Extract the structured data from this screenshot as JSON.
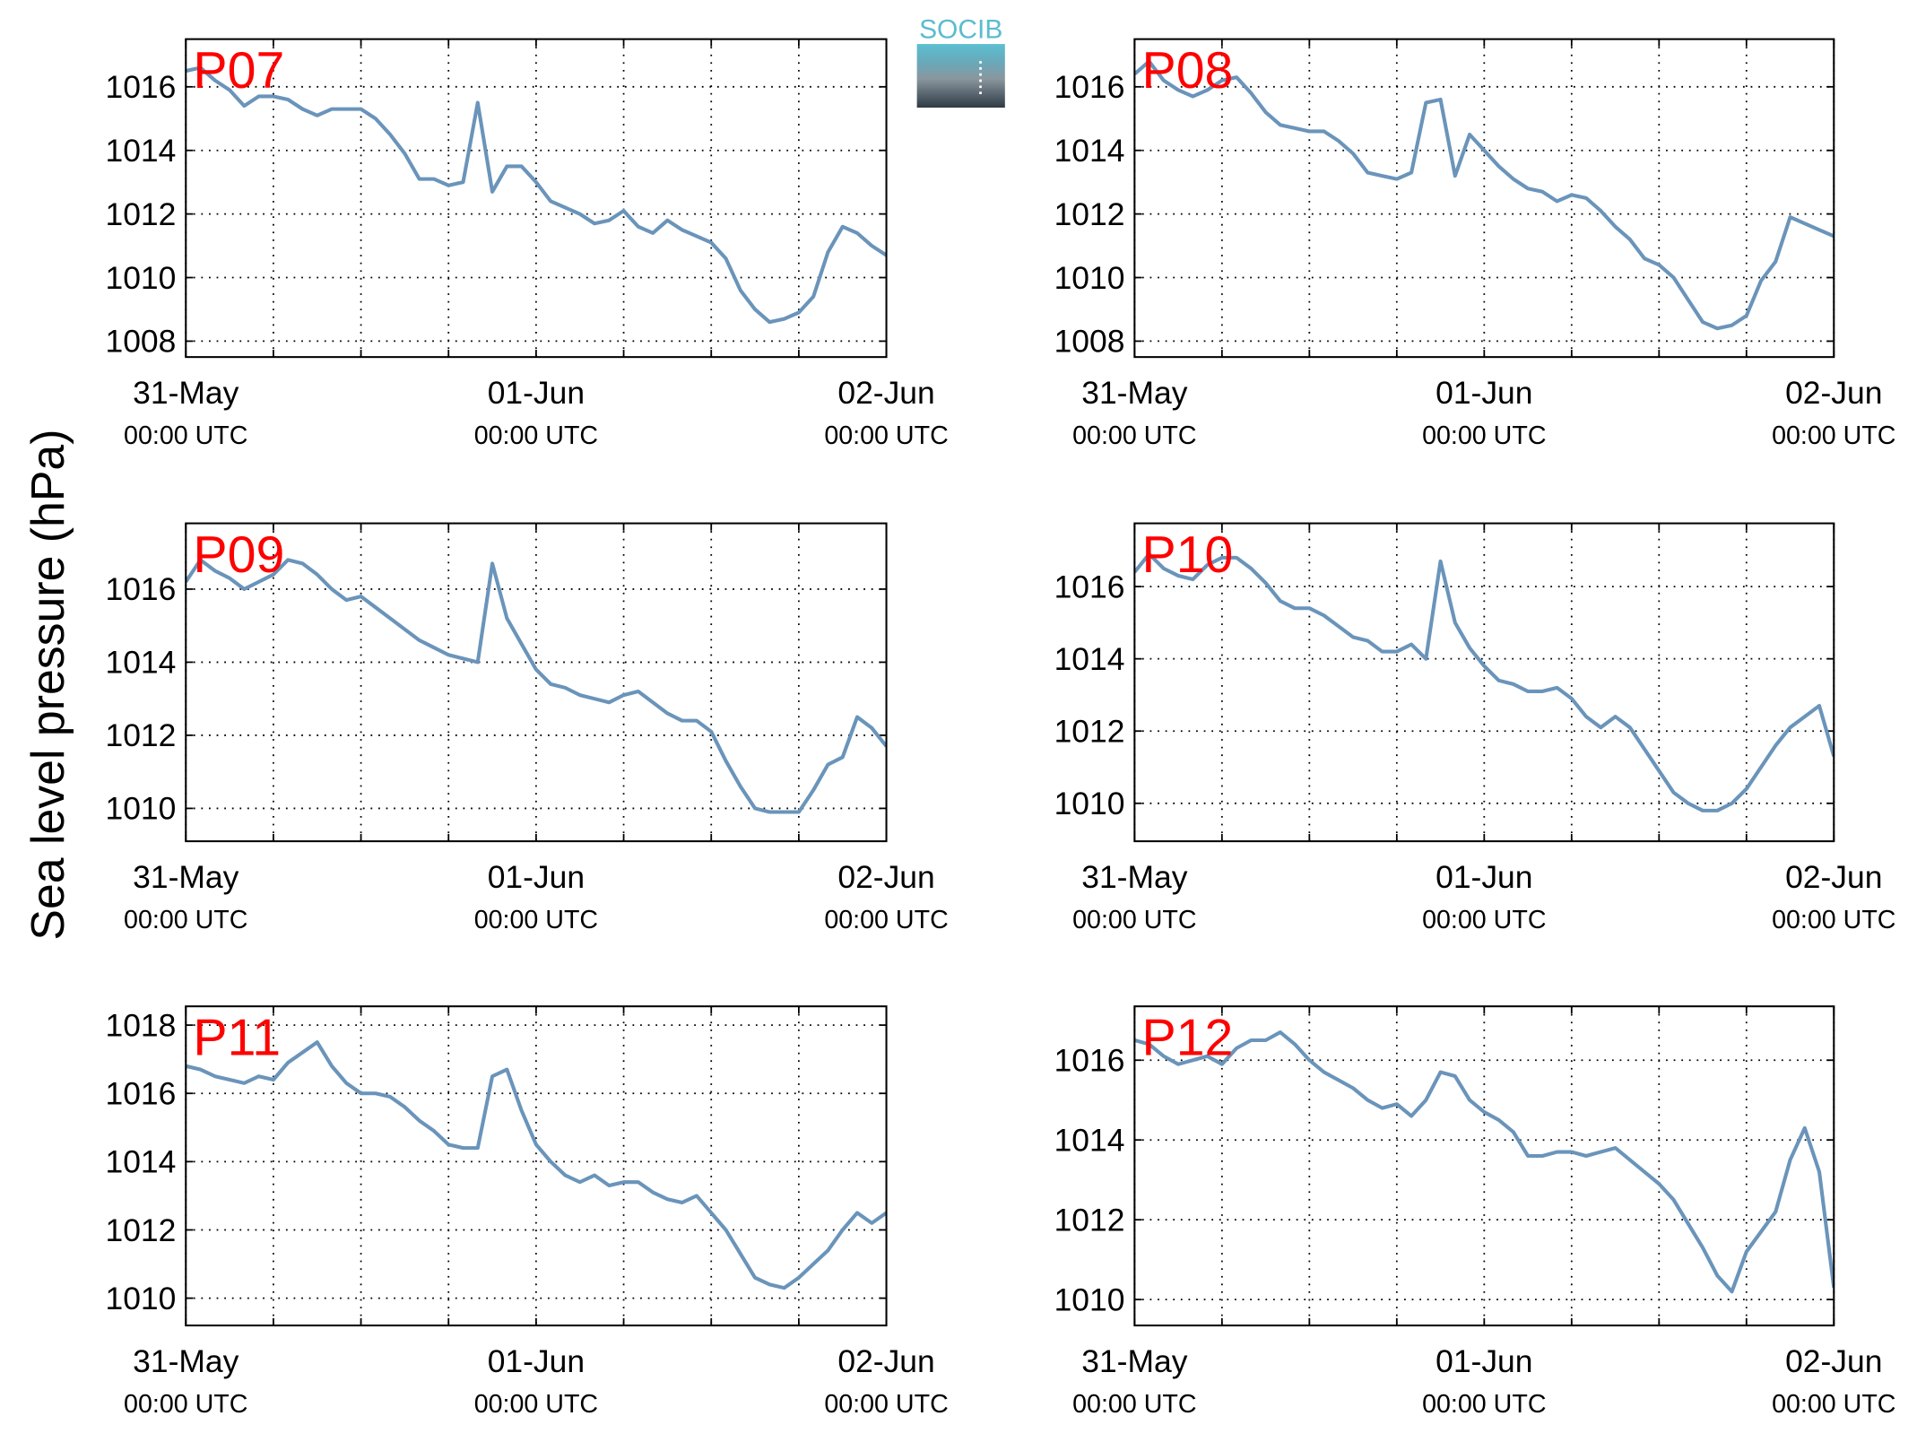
{
  "ylabel": "Sea level pressure (hPa)",
  "logo": "SOCIB",
  "chart_data": [
    {
      "type": "line",
      "title": "P07",
      "color": "#6a94ba",
      "x": [
        0,
        1,
        2,
        3,
        4,
        5,
        6,
        7,
        8,
        9,
        10,
        11,
        12,
        13,
        14,
        15,
        16,
        17,
        18,
        19,
        20,
        21,
        22,
        23,
        24,
        25,
        26,
        27,
        28,
        29,
        30,
        31,
        32,
        33,
        34,
        35,
        36,
        37,
        38,
        39,
        40,
        41,
        42,
        43,
        44,
        45,
        46,
        47,
        48
      ],
      "values": [
        1016.5,
        1016.6,
        1016.2,
        1015.9,
        1015.4,
        1015.7,
        1015.7,
        1015.6,
        1015.3,
        1015.1,
        1015.3,
        1015.3,
        1015.3,
        1015.0,
        1014.5,
        1013.9,
        1013.1,
        1013.1,
        1012.9,
        1013.0,
        1015.5,
        1012.7,
        1013.5,
        1013.5,
        1013.0,
        1012.4,
        1012.2,
        1012.0,
        1011.7,
        1011.8,
        1012.1,
        1011.6,
        1011.4,
        1011.8,
        1011.5,
        1011.3,
        1011.1,
        1010.6,
        1009.6,
        1009.0,
        1008.6,
        1008.7,
        1008.9,
        1009.4,
        1010.8,
        1011.6,
        1011.4,
        1011.0,
        1010.7
      ],
      "xlim": [
        0,
        48
      ],
      "ylim": [
        1007.5,
        1017.5
      ],
      "yticks": [
        1008,
        1010,
        1012,
        1014,
        1016
      ],
      "xticks": [
        {
          "value": 0,
          "label": "31-May\n00:00 UTC"
        },
        {
          "value": 24,
          "label": "01-Jun\n00:00 UTC"
        },
        {
          "value": 48,
          "label": "02-Jun\n00:00 UTC"
        }
      ],
      "xminor": [
        6,
        12,
        18,
        30,
        36,
        42
      ],
      "grid": true
    },
    {
      "type": "line",
      "title": "P08",
      "color": "#6a94ba",
      "x": [
        0,
        1,
        2,
        3,
        4,
        5,
        6,
        7,
        8,
        9,
        10,
        11,
        12,
        13,
        14,
        15,
        16,
        17,
        18,
        19,
        20,
        21,
        22,
        23,
        24,
        25,
        26,
        27,
        28,
        29,
        30,
        31,
        32,
        33,
        34,
        35,
        36,
        37,
        38,
        39,
        40,
        41,
        42,
        43,
        44,
        45,
        46,
        47,
        48
      ],
      "values": [
        1016.4,
        1016.8,
        1016.2,
        1015.9,
        1015.7,
        1015.9,
        1016.2,
        1016.3,
        1015.8,
        1015.2,
        1014.8,
        1014.7,
        1014.6,
        1014.6,
        1014.3,
        1013.9,
        1013.3,
        1013.2,
        1013.1,
        1013.3,
        1015.5,
        1015.6,
        1013.2,
        1014.5,
        1014.0,
        1013.5,
        1013.1,
        1012.8,
        1012.7,
        1012.4,
        1012.6,
        1012.5,
        1012.1,
        1011.6,
        1011.2,
        1010.6,
        1010.4,
        1010.0,
        1009.3,
        1008.6,
        1008.4,
        1008.5,
        1008.8,
        1009.9,
        1010.5,
        1011.9,
        1011.7,
        1011.5,
        1011.3
      ],
      "xlim": [
        0,
        48
      ],
      "ylim": [
        1007.5,
        1017.5
      ],
      "yticks": [
        1008,
        1010,
        1012,
        1014,
        1016
      ],
      "xticks": [
        {
          "value": 0,
          "label": "31-May\n00:00 UTC"
        },
        {
          "value": 24,
          "label": "01-Jun\n00:00 UTC"
        },
        {
          "value": 48,
          "label": "02-Jun\n00:00 UTC"
        }
      ],
      "xminor": [
        6,
        12,
        18,
        30,
        36,
        42
      ],
      "grid": true
    },
    {
      "type": "line",
      "title": "P09",
      "color": "#6a94ba",
      "x": [
        0,
        1,
        2,
        3,
        4,
        5,
        6,
        7,
        8,
        9,
        10,
        11,
        12,
        13,
        14,
        15,
        16,
        17,
        18,
        19,
        20,
        21,
        22,
        23,
        24,
        25,
        26,
        27,
        28,
        29,
        30,
        31,
        32,
        33,
        34,
        35,
        36,
        37,
        38,
        39,
        40,
        41,
        42,
        43,
        44,
        45,
        46,
        47,
        48
      ],
      "values": [
        1016.2,
        1016.8,
        1016.5,
        1016.3,
        1016.0,
        1016.2,
        1016.4,
        1016.8,
        1016.7,
        1016.4,
        1016.0,
        1015.7,
        1015.8,
        1015.5,
        1015.2,
        1014.9,
        1014.6,
        1014.4,
        1014.2,
        1014.1,
        1014.0,
        1016.7,
        1015.2,
        1014.5,
        1013.8,
        1013.4,
        1013.3,
        1013.1,
        1013.0,
        1012.9,
        1013.1,
        1013.2,
        1012.9,
        1012.6,
        1012.4,
        1012.4,
        1012.1,
        1011.3,
        1010.6,
        1010.0,
        1009.9,
        1009.9,
        1009.9,
        1010.5,
        1011.2,
        1011.4,
        1012.5,
        1012.2,
        1011.7
      ],
      "xlim": [
        0,
        48
      ],
      "ylim": [
        1009.1,
        1017.8
      ],
      "yticks": [
        1010,
        1012,
        1014,
        1016
      ],
      "xticks": [
        {
          "value": 0,
          "label": "31-May\n00:00 UTC"
        },
        {
          "value": 24,
          "label": "01-Jun\n00:00 UTC"
        },
        {
          "value": 48,
          "label": "02-Jun\n00:00 UTC"
        }
      ],
      "xminor": [
        6,
        12,
        18,
        30,
        36,
        42
      ],
      "grid": true
    },
    {
      "type": "line",
      "title": "P10",
      "color": "#6a94ba",
      "x": [
        0,
        1,
        2,
        3,
        4,
        5,
        6,
        7,
        8,
        9,
        10,
        11,
        12,
        13,
        14,
        15,
        16,
        17,
        18,
        19,
        20,
        21,
        22,
        23,
        24,
        25,
        26,
        27,
        28,
        29,
        30,
        31,
        32,
        33,
        34,
        35,
        36,
        37,
        38,
        39,
        40,
        41,
        42,
        43,
        44,
        45,
        46,
        47,
        48
      ],
      "values": [
        1016.4,
        1016.9,
        1016.5,
        1016.3,
        1016.2,
        1016.6,
        1016.8,
        1016.8,
        1016.5,
        1016.1,
        1015.6,
        1015.4,
        1015.4,
        1015.2,
        1014.9,
        1014.6,
        1014.5,
        1014.2,
        1014.2,
        1014.4,
        1014.0,
        1016.7,
        1015.0,
        1014.3,
        1013.8,
        1013.4,
        1013.3,
        1013.1,
        1013.1,
        1013.2,
        1012.9,
        1012.4,
        1012.1,
        1012.4,
        1012.1,
        1011.5,
        1010.9,
        1010.3,
        1010.0,
        1009.8,
        1009.8,
        1010.0,
        1010.4,
        1011.0,
        1011.6,
        1012.1,
        1012.4,
        1012.7,
        1011.3
      ],
      "xlim": [
        0,
        48
      ],
      "ylim": [
        1008.95,
        1017.75
      ],
      "yticks": [
        1010,
        1012,
        1014,
        1016
      ],
      "xticks": [
        {
          "value": 0,
          "label": "31-May\n00:00 UTC"
        },
        {
          "value": 24,
          "label": "01-Jun\n00:00 UTC"
        },
        {
          "value": 48,
          "label": "02-Jun\n00:00 UTC"
        }
      ],
      "xminor": [
        6,
        12,
        18,
        30,
        36,
        42
      ],
      "grid": true
    },
    {
      "type": "line",
      "title": "P11",
      "color": "#6a94ba",
      "x": [
        0,
        1,
        2,
        3,
        4,
        5,
        6,
        7,
        8,
        9,
        10,
        11,
        12,
        13,
        14,
        15,
        16,
        17,
        18,
        19,
        20,
        21,
        22,
        23,
        24,
        25,
        26,
        27,
        28,
        29,
        30,
        31,
        32,
        33,
        34,
        35,
        36,
        37,
        38,
        39,
        40,
        41,
        42,
        43,
        44,
        45,
        46,
        47,
        48
      ],
      "values": [
        1016.8,
        1016.7,
        1016.5,
        1016.4,
        1016.3,
        1016.5,
        1016.4,
        1016.9,
        1017.2,
        1017.5,
        1016.8,
        1016.3,
        1016.0,
        1016.0,
        1015.9,
        1015.6,
        1015.2,
        1014.9,
        1014.5,
        1014.4,
        1014.4,
        1016.5,
        1016.7,
        1015.5,
        1014.5,
        1014.0,
        1013.6,
        1013.4,
        1013.6,
        1013.3,
        1013.4,
        1013.4,
        1013.1,
        1012.9,
        1012.8,
        1013.0,
        1012.5,
        1012.0,
        1011.3,
        1010.6,
        1010.4,
        1010.3,
        1010.6,
        1011.0,
        1011.4,
        1012.0,
        1012.5,
        1012.2,
        1012.5
      ],
      "xlim": [
        0,
        48
      ],
      "ylim": [
        1009.2,
        1018.55
      ],
      "yticks": [
        1010,
        1012,
        1014,
        1016,
        1018
      ],
      "xticks": [
        {
          "value": 0,
          "label": "31-May\n00:00 UTC"
        },
        {
          "value": 24,
          "label": "01-Jun\n00:00 UTC"
        },
        {
          "value": 48,
          "label": "02-Jun\n00:00 UTC"
        }
      ],
      "xminor": [
        6,
        12,
        18,
        30,
        36,
        42
      ],
      "grid": true
    },
    {
      "type": "line",
      "title": "P12",
      "color": "#6a94ba",
      "x": [
        0,
        1,
        2,
        3,
        4,
        5,
        6,
        7,
        8,
        9,
        10,
        11,
        12,
        13,
        14,
        15,
        16,
        17,
        18,
        19,
        20,
        21,
        22,
        23,
        24,
        25,
        26,
        27,
        28,
        29,
        30,
        31,
        32,
        33,
        34,
        35,
        36,
        37,
        38,
        39,
        40,
        41,
        42,
        43,
        44,
        45,
        46,
        47,
        48
      ],
      "values": [
        1016.5,
        1016.4,
        1016.1,
        1015.9,
        1016.0,
        1016.1,
        1015.9,
        1016.3,
        1016.5,
        1016.5,
        1016.7,
        1016.4,
        1016.0,
        1015.7,
        1015.5,
        1015.3,
        1015.0,
        1014.8,
        1014.9,
        1014.6,
        1015.0,
        1015.7,
        1015.6,
        1015.0,
        1014.7,
        1014.5,
        1014.2,
        1013.6,
        1013.6,
        1013.7,
        1013.7,
        1013.6,
        1013.7,
        1013.8,
        1013.5,
        1013.2,
        1012.9,
        1012.5,
        1011.9,
        1011.3,
        1010.6,
        1010.2,
        1011.2,
        1011.7,
        1012.2,
        1013.5,
        1014.3,
        1013.2,
        1010.3
      ],
      "xlim": [
        0,
        48
      ],
      "ylim": [
        1009.35,
        1017.35
      ],
      "yticks": [
        1010,
        1012,
        1014,
        1016
      ],
      "xticks": [
        {
          "value": 0,
          "label": "31-May\n00:00 UTC"
        },
        {
          "value": 24,
          "label": "01-Jun\n00:00 UTC"
        },
        {
          "value": 48,
          "label": "02-Jun\n00:00 UTC"
        }
      ],
      "xminor": [
        6,
        12,
        18,
        30,
        36,
        42
      ],
      "grid": true
    }
  ]
}
